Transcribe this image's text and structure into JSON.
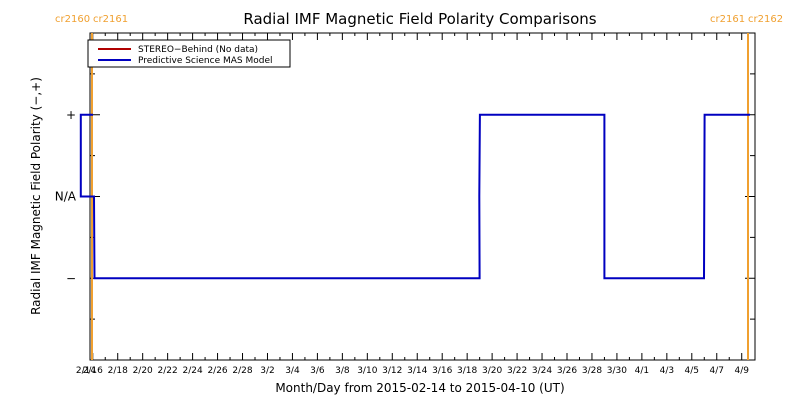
{
  "chart_data": {
    "type": "line",
    "title": "Radial IMF Magnetic Field Polarity Comparisons",
    "xlabel": "Month/Day from 2015-02-14 to 2015-04-10 (UT)",
    "ylabel": "Radial IMF Magnetic Field Polarity (−,+)",
    "x_tick_labels": [
      "2/14",
      "2/16",
      "2/18",
      "2/20",
      "2/22",
      "2/24",
      "2/26",
      "2/28",
      "3/2",
      "3/4",
      "3/6",
      "3/8",
      "3/10",
      "3/12",
      "3/14",
      "3/16",
      "3/18",
      "3/20",
      "3/22",
      "3/24",
      "3/26",
      "3/28",
      "3/30",
      "4/1",
      "4/3",
      "4/5",
      "4/7",
      "4/9"
    ],
    "y_categories": [
      "−",
      "N/A",
      "+"
    ],
    "y_values_map": {
      "-": -1,
      "N/A": 0,
      "+": 1
    },
    "ylim": [
      -2,
      2
    ],
    "xlim_days": [
      0,
      55
    ],
    "legend": {
      "position": "top-left",
      "entries": [
        {
          "name": "STEREO−Behind (No data)",
          "color": "#b00000"
        },
        {
          "name": "Predictive Science MAS Model",
          "color": "#0000c0"
        }
      ]
    },
    "series": [
      {
        "name": "STEREO−Behind (No data)",
        "color": "#b00000",
        "points": []
      },
      {
        "name": "Predictive Science MAS Model",
        "color": "#0000c0",
        "x_dates": [
          "2015-02-14",
          "2015-02-15",
          "2015-02-15",
          "2015-02-16",
          "2015-02-16",
          "2015-03-19",
          "2015-03-19",
          "2015-03-19",
          "2015-03-29",
          "2015-03-29",
          "2015-04-06",
          "2015-04-06",
          "2015-04-06",
          "2015-04-10"
        ],
        "y": [
          1,
          1,
          0,
          0,
          -1,
          -1,
          0,
          1,
          1,
          -1,
          -1,
          0,
          1,
          1
        ]
      }
    ],
    "carrington_markers": [
      {
        "label_left": "cr2160",
        "label_right": "cr2161",
        "date": "2015-02-14",
        "color": "#f0a030"
      },
      {
        "label_left": "cr2161",
        "label_right": "cr2162",
        "date": "2015-04-10",
        "color": "#f0a030"
      }
    ]
  }
}
